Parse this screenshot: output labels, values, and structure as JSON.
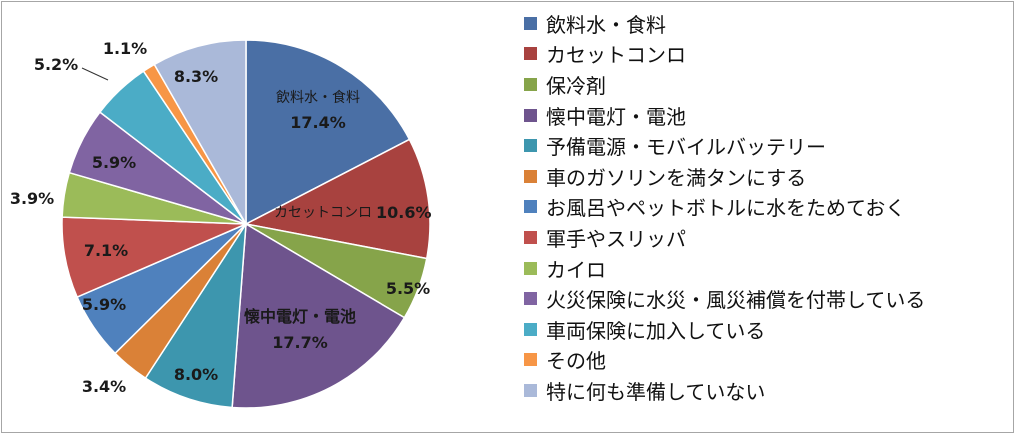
{
  "chart_data": {
    "type": "pie",
    "title": "",
    "series": [
      {
        "name": "飲料水・食料",
        "value": 17.4,
        "label": "17.4%",
        "inner_name": "飲料水・食料",
        "color": "#4a6fa5"
      },
      {
        "name": "カセットコンロ",
        "value": 10.6,
        "label": "10.6%",
        "inner_name": "カセットコンロ",
        "color": "#a8423f"
      },
      {
        "name": "保冷剤",
        "value": 5.5,
        "label": "5.5%",
        "color": "#86a44a"
      },
      {
        "name": "懐中電灯・電池",
        "value": 17.7,
        "label": "17.7%",
        "inner_name": "懐中電灯・電池",
        "color": "#6e548d"
      },
      {
        "name": "予備電源・モバイルバッテリー",
        "value": 8.0,
        "label": "8.0%",
        "color": "#3d96ae"
      },
      {
        "name": "車のガソリンを満タンにする",
        "value": 3.4,
        "label": "3.4%",
        "color": "#da8137"
      },
      {
        "name": "お風呂やペットボトルに水をためておく",
        "value": 5.9,
        "label": "5.9%",
        "color": "#4f81bd"
      },
      {
        "name": "軍手やスリッパ",
        "value": 7.1,
        "label": "7.1%",
        "color": "#c0504d"
      },
      {
        "name": "カイロ",
        "value": 3.9,
        "label": "3.9%",
        "color": "#9bbb59"
      },
      {
        "name": "火災保険に水災・風災補償を付帯している",
        "value": 5.9,
        "label": "5.9%",
        "color": "#8064a2"
      },
      {
        "name": "車両保険に加入している",
        "value": 5.2,
        "label": "5.2%",
        "color": "#4bacc6"
      },
      {
        "name": "その他",
        "value": 1.1,
        "label": "1.1%",
        "color": "#f79646"
      },
      {
        "name": "特に何も準備していない",
        "value": 8.3,
        "label": "8.3%",
        "color": "#aab9d9"
      }
    ],
    "legend_position": "right",
    "start_angle": "12 o'clock",
    "direction": "clockwise"
  }
}
